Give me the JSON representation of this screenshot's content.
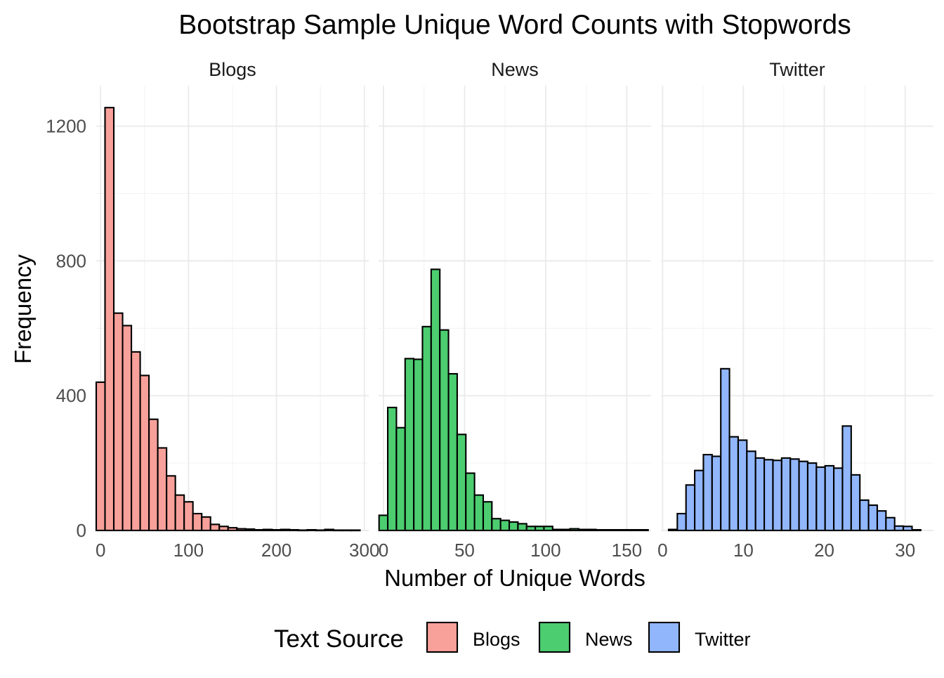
{
  "chart_data": {
    "type": "bar",
    "title": "Bootstrap Sample Unique Word Counts with Stopwords",
    "xlabel": "Number of Unique Words",
    "ylabel": "Frequency",
    "ylim": [
      0,
      1320
    ],
    "y_ticks": [
      0,
      400,
      800,
      1200
    ],
    "y_tick_labels": [
      "0",
      "400",
      "800",
      "1200"
    ],
    "grid": true,
    "legend": {
      "title": "Text Source",
      "position": "bottom",
      "entries": [
        {
          "label": "Blogs",
          "color": "#F8A09A"
        },
        {
          "label": "News",
          "color": "#4CCD70"
        },
        {
          "label": "Twitter",
          "color": "#91B6FB"
        }
      ]
    },
    "panels": [
      {
        "name": "Blogs",
        "color": "#F8A09A",
        "xlim": [
          -5,
          305
        ],
        "x_ticks": [
          0,
          100,
          200,
          300
        ],
        "x_tick_labels": [
          "0",
          "100",
          "200",
          "300"
        ],
        "bin_width": 10.0,
        "bin_start": -5.0,
        "values": [
          440,
          1255,
          645,
          608,
          530,
          460,
          330,
          245,
          162,
          105,
          85,
          50,
          40,
          18,
          12,
          8,
          5,
          4,
          2,
          3,
          2,
          3,
          2,
          1,
          2,
          1,
          3,
          1,
          1,
          1
        ]
      },
      {
        "name": "News",
        "color": "#4CCD70",
        "xlim": [
          -3,
          165
        ],
        "x_ticks": [
          0,
          50,
          100,
          150
        ],
        "x_tick_labels": [
          "0",
          "50",
          "100",
          "150"
        ],
        "bin_width": 5.35,
        "bin_start": -2.7,
        "values": [
          45,
          365,
          305,
          510,
          508,
          605,
          775,
          595,
          465,
          285,
          170,
          105,
          85,
          35,
          30,
          25,
          20,
          12,
          12,
          12,
          3,
          3,
          5,
          3,
          3,
          2,
          2,
          2,
          2,
          2,
          2
        ]
      },
      {
        "name": "Twitter",
        "color": "#91B6FB",
        "xlim": [
          -0.2,
          33.5
        ],
        "x_ticks": [
          0,
          10,
          20,
          30
        ],
        "x_tick_labels": [
          "0",
          "10",
          "20",
          "30"
        ],
        "bin_width": 1.075,
        "bin_start": 0.75,
        "values": [
          3,
          50,
          135,
          178,
          225,
          220,
          480,
          278,
          268,
          235,
          215,
          210,
          208,
          215,
          212,
          205,
          200,
          188,
          192,
          185,
          310,
          165,
          90,
          75,
          58,
          38,
          13,
          12,
          2
        ]
      }
    ]
  }
}
